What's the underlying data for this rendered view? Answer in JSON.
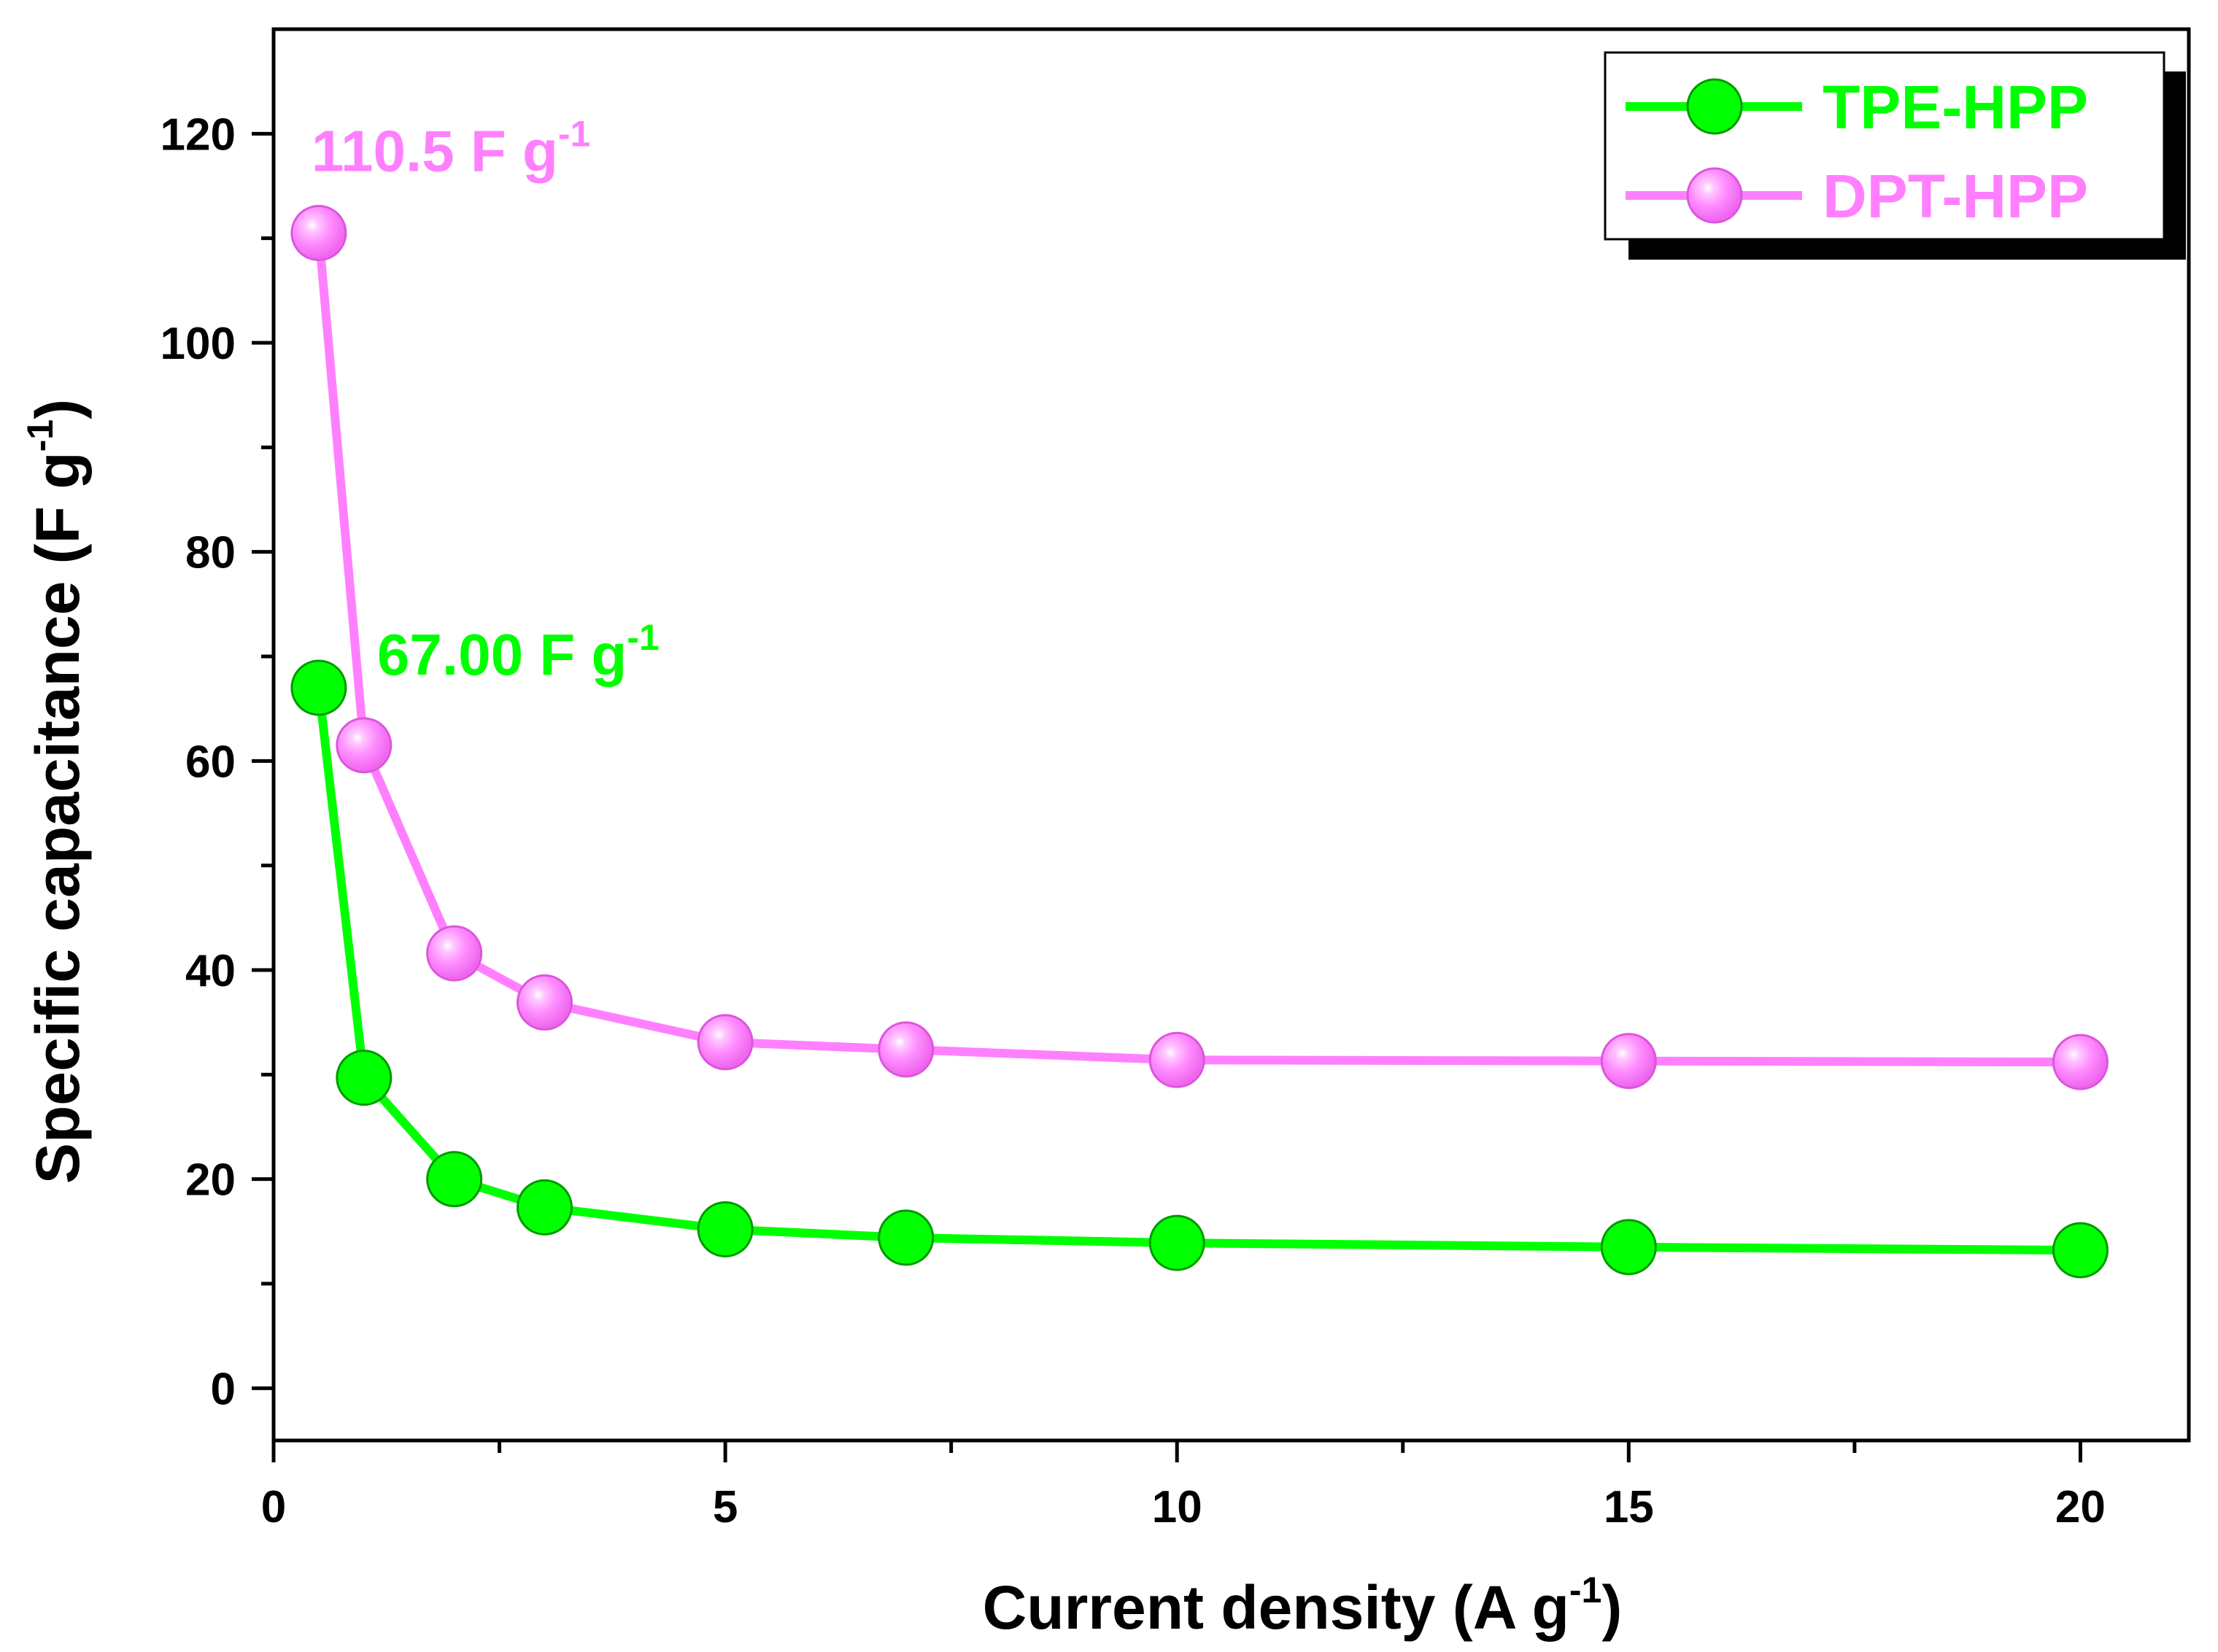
{
  "chart_data": {
    "type": "line",
    "title": "",
    "xlabel": "Current density (A g",
    "xlabel_sup": "-1",
    "xlabel_close": ")",
    "ylabel": "Specific capacitance (F g",
    "ylabel_sup": "-1",
    "ylabel_close": ")",
    "xlim": [
      0,
      21.2
    ],
    "ylim": [
      -5,
      130
    ],
    "x_ticks": [
      0,
      5,
      10,
      15,
      20
    ],
    "x_tick_labels": [
      "0",
      "5",
      "10",
      "15",
      "20"
    ],
    "x_minor_ticks": [
      2.5,
      7.5,
      12.5,
      17.5
    ],
    "y_ticks": [
      0,
      20,
      40,
      60,
      80,
      100,
      120
    ],
    "y_tick_labels": [
      "0",
      "20",
      "40",
      "60",
      "80",
      "100",
      "120"
    ],
    "y_minor_ticks": [
      10,
      30,
      50,
      70,
      90,
      110
    ],
    "grid": false,
    "legend_position": "top-right",
    "series": [
      {
        "name": "TPE-HPP",
        "color": "#00FF00",
        "marker": "filled-circle",
        "x": [
          0.5,
          1,
          2,
          3,
          5,
          7,
          10,
          15,
          20
        ],
        "y": [
          67.0,
          29.7,
          20.0,
          17.3,
          15.2,
          14.4,
          13.9,
          13.5,
          13.2
        ]
      },
      {
        "name": "DPT-HPP",
        "color": "#FF80FF",
        "marker": "shaded-sphere",
        "x": [
          0.5,
          1,
          2,
          3,
          5,
          7,
          10,
          15,
          20
        ],
        "y": [
          110.5,
          61.5,
          41.6,
          36.9,
          33.1,
          32.4,
          31.4,
          31.3,
          31.2
        ]
      }
    ],
    "annotations": [
      {
        "text": "110.5 F g",
        "sup": "-1",
        "color": "#FF80FF",
        "series": "DPT-HPP"
      },
      {
        "text": "67.00 F g",
        "sup": "-1",
        "color": "#00FF00",
        "series": "TPE-HPP"
      }
    ]
  }
}
